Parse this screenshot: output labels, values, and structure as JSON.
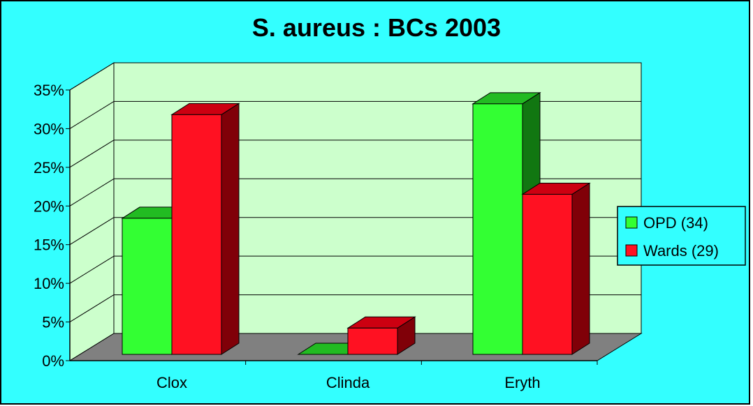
{
  "chart_data": {
    "type": "bar",
    "title": "S. aureus : BCs 2003",
    "categories": [
      "Clox",
      "Clinda",
      "Eryth"
    ],
    "series": [
      {
        "name": "OPD (34)",
        "values": [
          17.6,
          0,
          32.4
        ],
        "color": "#33FF33",
        "side": "#117711",
        "top": "#22BB22"
      },
      {
        "name": "Wards (29)",
        "values": [
          31.0,
          3.4,
          20.7
        ],
        "color": "#FF1122",
        "side": "#800008",
        "top": "#CC0011"
      }
    ],
    "ylim": [
      0,
      35
    ],
    "yticks": [
      "0%",
      "5%",
      "10%",
      "15%",
      "20%",
      "25%",
      "30%",
      "35%"
    ],
    "grid": true,
    "legend": "right",
    "colors": {
      "background": "#33FFFF",
      "wall": "#CCFFCC",
      "floor": "#808080"
    }
  }
}
